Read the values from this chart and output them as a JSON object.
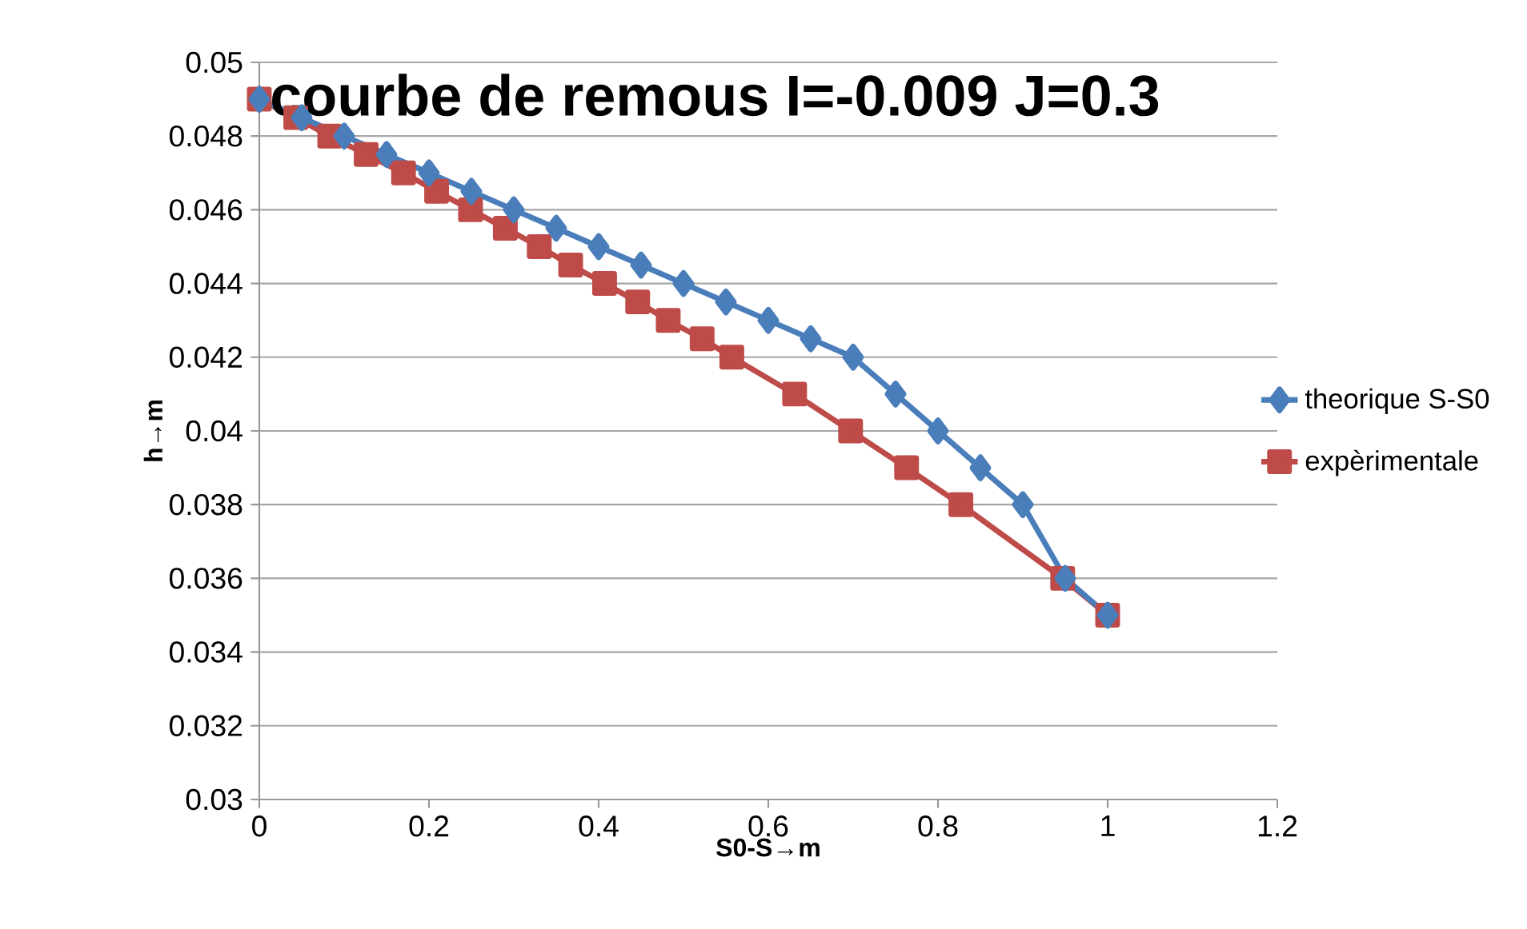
{
  "chart_data": {
    "type": "line",
    "title": "courbe de remous I=-0.009 J=0.3",
    "xlabel": "S0-S→m",
    "ylabel": "h→m",
    "xlim": [
      0,
      1.2
    ],
    "xticks": [
      0,
      0.2,
      0.4,
      0.6,
      0.8,
      1,
      1.2
    ],
    "ylim": [
      0.03,
      0.05
    ],
    "yticks": [
      0.03,
      0.032,
      0.034,
      0.036,
      0.038,
      0.04,
      0.042,
      0.044,
      0.046,
      0.048,
      0.05
    ],
    "grid": "y",
    "legend": "right",
    "series": [
      {
        "name": "theorique S-S0",
        "color": "#4a7ebb",
        "marker": "diamond",
        "x": [
          0,
          0.05,
          0.1,
          0.15,
          0.2,
          0.25,
          0.3,
          0.35,
          0.4,
          0.45,
          0.5,
          0.55,
          0.6,
          0.65,
          0.7,
          0.75,
          0.8,
          0.85,
          0.9,
          0.95,
          1
        ],
        "values": [
          0.049,
          0.0485,
          0.048,
          0.0475,
          0.047,
          0.0465,
          0.046,
          0.0455,
          0.045,
          0.0445,
          0.044,
          0.0435,
          0.043,
          0.0425,
          0.042,
          0.041,
          0.04,
          0.039,
          0.038,
          0.036,
          0.035
        ]
      },
      {
        "name": "expèrimentale",
        "color": "#be4b48",
        "marker": "square",
        "x": [
          0,
          0.043,
          0.083,
          0.126,
          0.17,
          0.209,
          0.249,
          0.29,
          0.33,
          0.367,
          0.407,
          0.446,
          0.482,
          0.522,
          0.557,
          0.631,
          0.697,
          0.763,
          0.827,
          0.947,
          1
        ],
        "values": [
          0.049,
          0.0485,
          0.048,
          0.0475,
          0.047,
          0.0465,
          0.046,
          0.0455,
          0.045,
          0.0445,
          0.044,
          0.0435,
          0.043,
          0.0425,
          0.042,
          0.041,
          0.04,
          0.039,
          0.038,
          0.036,
          0.035
        ]
      }
    ]
  }
}
